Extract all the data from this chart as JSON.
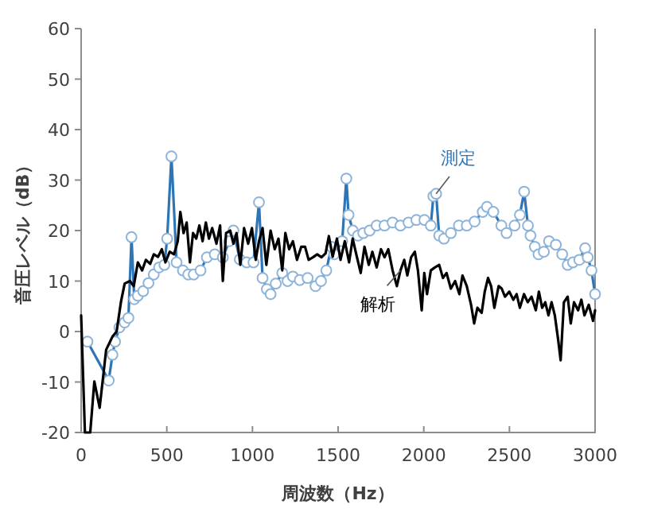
{
  "chart_data": {
    "type": "line",
    "xlabel": "周波数（Hz）",
    "ylabel": "音圧レベル（dB）",
    "xlim": [
      0,
      3000
    ],
    "xticks": [
      0,
      500,
      1000,
      1500,
      2000,
      2500,
      3000
    ],
    "ylim": [
      -20,
      60
    ],
    "yticks": [
      -20,
      -10,
      0,
      10,
      20,
      30,
      40,
      50,
      60
    ],
    "grid": false,
    "series": [
      {
        "name": "測定",
        "color": "#2e75b6",
        "marker": "circle",
        "x": [
          37,
          161,
          183,
          198,
          223,
          254,
          276,
          294,
          310,
          331,
          362,
          393,
          424,
          455,
          486,
          502,
          527,
          557,
          594,
          625,
          657,
          697,
          734,
          780,
          827,
          864,
          889,
          926,
          966,
          1006,
          1038,
          1059,
          1084,
          1106,
          1136,
          1174,
          1205,
          1236,
          1276,
          1322,
          1368,
          1400,
          1431,
          1461,
          1477,
          1524,
          1548,
          1561,
          1586,
          1616,
          1647,
          1684,
          1725,
          1771,
          1818,
          1864,
          1911,
          1957,
          2004,
          2041,
          2056,
          2072,
          2090,
          2118,
          2158,
          2205,
          2251,
          2297,
          2344,
          2369,
          2406,
          2453,
          2483,
          2530,
          2561,
          2586,
          2608,
          2623,
          2648,
          2670,
          2701,
          2731,
          2771,
          2808,
          2840,
          2871,
          2908,
          2942,
          2957,
          2979,
          3000
        ],
        "values": [
          -2,
          -9.7,
          -4.6,
          -2,
          0.8,
          1.8,
          2.7,
          18.7,
          6.4,
          7.1,
          8,
          9.6,
          11.3,
          12.7,
          13.2,
          18.4,
          34.7,
          13.7,
          12.1,
          11.3,
          11.3,
          12.1,
          14.7,
          15.3,
          14.7,
          17.9,
          20,
          14.3,
          13.7,
          13.7,
          25.6,
          10.6,
          8.4,
          7.4,
          9.5,
          11.6,
          10,
          10.9,
          10.2,
          10.6,
          9,
          10,
          12.1,
          16.8,
          15.3,
          17.9,
          30.3,
          23.1,
          20,
          19,
          19.5,
          20,
          21,
          21,
          21.6,
          21,
          21.6,
          22.1,
          22.1,
          21,
          26.8,
          27.3,
          19,
          18.4,
          19.5,
          21,
          21,
          21.8,
          23.7,
          24.7,
          23.7,
          21,
          19.5,
          21,
          23.1,
          27.7,
          21,
          19,
          16.8,
          15.3,
          15.8,
          17.9,
          17.2,
          15.3,
          13.2,
          13.7,
          14.2,
          16.5,
          14.7,
          12.1,
          7.4
        ]
      },
      {
        "name": "解析",
        "color": "#000000",
        "marker": "none",
        "x": [
          0,
          22,
          53,
          77,
          108,
          146,
          183,
          207,
          232,
          254,
          285,
          307,
          331,
          356,
          378,
          403,
          424,
          449,
          471,
          492,
          517,
          542,
          564,
          579,
          598,
          616,
          635,
          653,
          672,
          690,
          709,
          728,
          746,
          765,
          790,
          811,
          827,
          846,
          870,
          889,
          907,
          929,
          951,
          975,
          997,
          1019,
          1038,
          1059,
          1081,
          1106,
          1130,
          1152,
          1174,
          1192,
          1214,
          1236,
          1260,
          1285,
          1307,
          1328,
          1353,
          1378,
          1403,
          1427,
          1446,
          1468,
          1493,
          1514,
          1539,
          1564,
          1585,
          1606,
          1632,
          1654,
          1679,
          1700,
          1725,
          1750,
          1771,
          1793,
          1818,
          1843,
          1864,
          1886,
          1904,
          1926,
          1948,
          1966,
          1988,
          2003,
          2019,
          2041,
          2065,
          2090,
          2112,
          2133,
          2158,
          2183,
          2208,
          2226,
          2251,
          2276,
          2294,
          2313,
          2338,
          2356,
          2375,
          2393,
          2412,
          2437,
          2455,
          2474,
          2499,
          2523,
          2542,
          2561,
          2585,
          2607,
          2629,
          2654,
          2672,
          2691,
          2709,
          2728,
          2746,
          2765,
          2784,
          2799,
          2818,
          2840,
          2858,
          2877,
          2901,
          2920,
          2938,
          2963,
          2988,
          3000
        ],
        "values": [
          3.2,
          -20,
          -20,
          -9.9,
          -15.1,
          -3.6,
          -1,
          0,
          5.8,
          9.5,
          10,
          9,
          13.7,
          12.1,
          14.2,
          13.4,
          15.3,
          14.8,
          16.3,
          13.7,
          15.8,
          15.3,
          17.9,
          23.7,
          19.5,
          21.6,
          13.7,
          19.5,
          18.4,
          21,
          17.9,
          21.6,
          18.4,
          20.5,
          17.4,
          21,
          10,
          19.5,
          20,
          17.4,
          19.5,
          13.2,
          20.5,
          17.4,
          20.5,
          14.2,
          17.9,
          20.5,
          13.2,
          20,
          16.3,
          18.4,
          12.1,
          19.5,
          16.3,
          17.9,
          14.2,
          16.8,
          16.8,
          14.2,
          14.7,
          15.3,
          14.7,
          15.5,
          18.9,
          14.8,
          18.4,
          14.2,
          17.9,
          13.7,
          18.4,
          15.3,
          11.6,
          16.8,
          13.2,
          15.8,
          12.7,
          16.3,
          14.7,
          16.3,
          12.1,
          9,
          12.1,
          14.2,
          11.1,
          14.7,
          15.8,
          12.1,
          4.2,
          11.6,
          7.4,
          12.1,
          12.7,
          13.2,
          10.6,
          11.6,
          8.5,
          10,
          7.4,
          11.1,
          9,
          5.3,
          1.6,
          4.7,
          3.7,
          7.9,
          10.6,
          9,
          4.7,
          9,
          8.5,
          6.9,
          7.9,
          6.3,
          7.4,
          4.7,
          7.4,
          5.8,
          6.9,
          4.2,
          7.9,
          4.7,
          5.8,
          3.2,
          5.8,
          3.2,
          -1.5,
          -5.7,
          5.8,
          6.9,
          1.6,
          5.8,
          4.2,
          6.3,
          3.2,
          5.3,
          2.1,
          4.2
        ]
      }
    ]
  }
}
